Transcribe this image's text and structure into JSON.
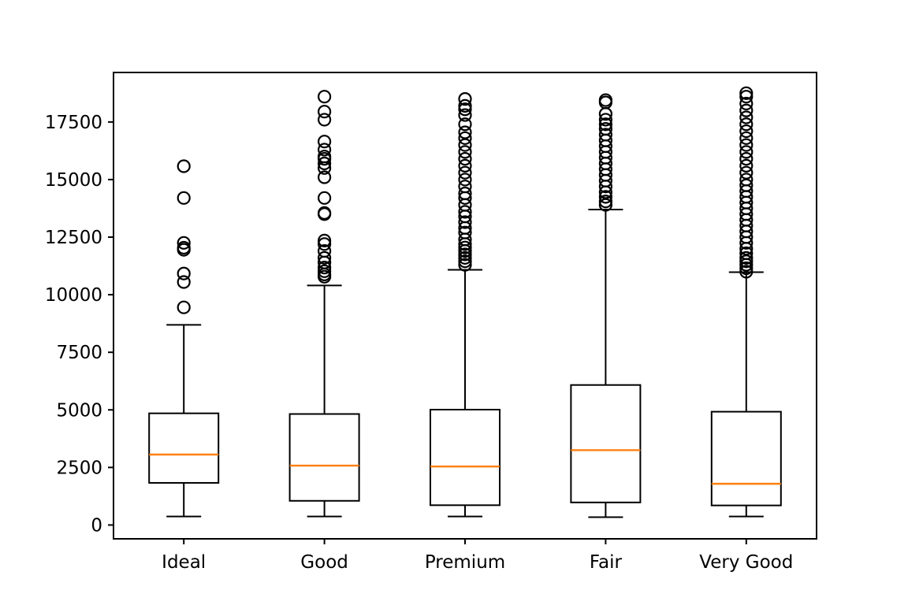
{
  "chart_data": {
    "type": "box",
    "title": "",
    "xlabel": "",
    "ylabel": "",
    "ylim": [
      -600,
      19650
    ],
    "yticks": [
      0,
      2500,
      5000,
      7500,
      10000,
      12500,
      15000,
      17500
    ],
    "ytick_labels": [
      "0",
      "2500",
      "5000",
      "7500",
      "10000",
      "12500",
      "15000",
      "17500"
    ],
    "grid": false,
    "median_color": "#ff7f0e",
    "categories": [
      "Ideal",
      "Good",
      "Premium",
      "Fair",
      "Very Good"
    ],
    "boxes": [
      {
        "name": "Ideal",
        "whisker_low": 370,
        "q1": 1830,
        "median": 3060,
        "q3": 4850,
        "whisker_high": 8690,
        "fliers": [
          9450,
          10550,
          10920,
          11950,
          12040,
          12250,
          14200,
          15580
        ]
      },
      {
        "name": "Good",
        "whisker_low": 370,
        "q1": 1050,
        "median": 2580,
        "q3": 4820,
        "whisker_high": 10400,
        "fliers": [
          10780,
          10880,
          11020,
          11180,
          11400,
          11600,
          11900,
          12200,
          12350,
          13500,
          13550,
          14200,
          15100,
          15500,
          15700,
          15900,
          16000,
          16300,
          16650,
          17600,
          17950,
          18600
        ]
      },
      {
        "name": "Premium",
        "whisker_low": 370,
        "q1": 860,
        "median": 2540,
        "q3": 5010,
        "whisker_high": 11080,
        "fliers": [
          11300,
          11450,
          11600,
          11750,
          11900,
          12050,
          12200,
          12400,
          12700,
          12900,
          13150,
          13400,
          13600,
          13900,
          14200,
          14400,
          14700,
          15000,
          15300,
          15600,
          15900,
          16200,
          16500,
          16800,
          17050,
          17400,
          17800,
          18050,
          18200,
          18500
        ]
      },
      {
        "name": "Fair",
        "whisker_low": 340,
        "q1": 980,
        "median": 3250,
        "q3": 6080,
        "whisker_high": 13700,
        "fliers": [
          13900,
          14050,
          14250,
          14450,
          14700,
          14950,
          15200,
          15450,
          15700,
          15950,
          16200,
          16450,
          16700,
          16950,
          17200,
          17400,
          17600,
          17850,
          18350,
          18450
        ]
      },
      {
        "name": "Very Good",
        "whisker_low": 370,
        "q1": 850,
        "median": 1790,
        "q3": 4920,
        "whisker_high": 10980,
        "fliers": [
          11000,
          11150,
          11300,
          11450,
          11600,
          11800,
          12000,
          12250,
          12500,
          12750,
          13000,
          13250,
          13500,
          13750,
          14000,
          14250,
          14500,
          14750,
          15000,
          15300,
          15600,
          15900,
          16200,
          16500,
          16800,
          17100,
          17400,
          17700,
          18000,
          18300,
          18600,
          18750
        ]
      }
    ]
  }
}
